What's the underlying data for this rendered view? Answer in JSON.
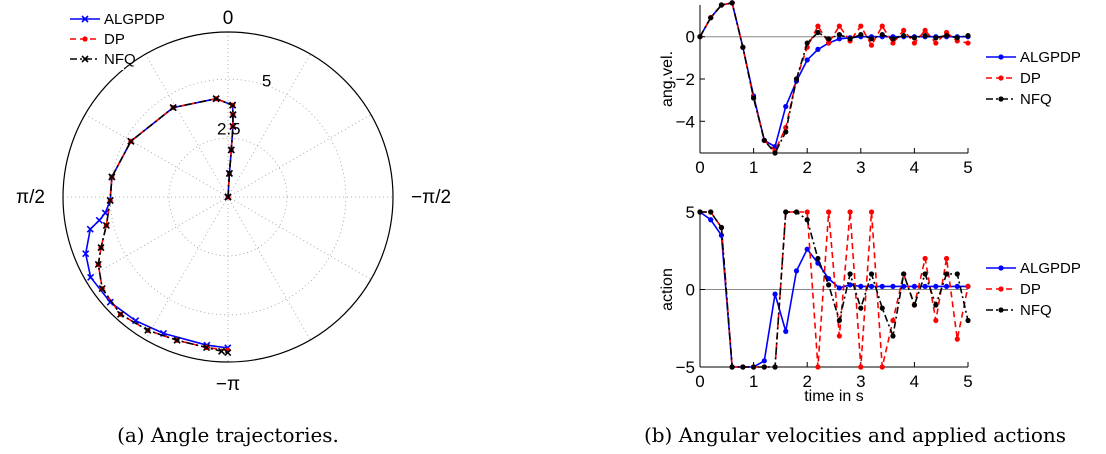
{
  "chart_data": [
    {
      "type": "polar-line",
      "caption": "(a) Angle trajectories.",
      "angle_labels": [
        "0",
        "π/2",
        "−π",
        "−π/2"
      ],
      "radial_ticks": [
        2.5,
        5
      ],
      "radial_tick_labels": [
        "2.5",
        "5"
      ],
      "rmax": 7,
      "series": [
        {
          "name": "ALGPDP",
          "color": "#0000ff",
          "dash": "solid",
          "marker": "x",
          "points": [
            [
              0.05,
              0
            ],
            [
              -0.06,
              1
            ],
            [
              -0.07,
              2
            ],
            [
              -0.07,
              3
            ],
            [
              -0.06,
              3.5
            ],
            [
              -0.05,
              3.9
            ],
            [
              0.12,
              4.2
            ],
            [
              0.55,
              4.45
            ],
            [
              1.05,
              4.75
            ],
            [
              1.4,
              5.0
            ],
            [
              1.6,
              5.0
            ],
            [
              1.7,
              5.25
            ],
            [
              1.75,
              5.55
            ],
            [
              1.8,
              6.0
            ],
            [
              1.95,
              6.5
            ],
            [
              2.1,
              6.75
            ],
            [
              2.3,
              6.7
            ],
            [
              2.5,
              6.55
            ],
            [
              2.7,
              6.4
            ],
            [
              3.0,
              6.35
            ],
            [
              3.14,
              6.4
            ]
          ]
        },
        {
          "name": "DP",
          "color": "#ff0000",
          "dash": "dashed",
          "marker": "dot",
          "points": [
            [
              0.05,
              0
            ],
            [
              -0.06,
              1
            ],
            [
              -0.07,
              2
            ],
            [
              -0.07,
              3
            ],
            [
              -0.06,
              3.5
            ],
            [
              -0.05,
              3.9
            ],
            [
              0.12,
              4.2
            ],
            [
              0.55,
              4.45
            ],
            [
              1.05,
              4.75
            ],
            [
              1.4,
              5.0
            ],
            [
              1.6,
              5.0
            ],
            [
              1.8,
              5.3
            ],
            [
              1.95,
              5.8
            ],
            [
              2.05,
              6.2
            ],
            [
              2.2,
              6.6
            ],
            [
              2.4,
              6.75
            ],
            [
              2.6,
              6.6
            ],
            [
              2.8,
              6.45
            ],
            [
              3.0,
              6.45
            ],
            [
              3.14,
              6.5
            ]
          ]
        },
        {
          "name": "NFQ",
          "color": "#000000",
          "dash": "dashdot",
          "marker": "x",
          "points": [
            [
              0.05,
              0
            ],
            [
              -0.06,
              1
            ],
            [
              -0.07,
              2
            ],
            [
              -0.07,
              3
            ],
            [
              -0.06,
              3.5
            ],
            [
              -0.05,
              3.9
            ],
            [
              0.12,
              4.2
            ],
            [
              0.55,
              4.45
            ],
            [
              1.05,
              4.75
            ],
            [
              1.4,
              5.0
            ],
            [
              1.6,
              5.0
            ],
            [
              1.8,
              5.3
            ],
            [
              1.95,
              5.8
            ],
            [
              2.05,
              6.2
            ],
            [
              2.2,
              6.6
            ],
            [
              2.4,
              6.75
            ],
            [
              2.6,
              6.6
            ],
            [
              2.8,
              6.45
            ],
            [
              3.0,
              6.45
            ],
            [
              3.1,
              6.55
            ],
            [
              3.14,
              6.6
            ]
          ]
        }
      ]
    },
    {
      "type": "line",
      "ylabel": "ang.vel.",
      "xlim": [
        0,
        5
      ],
      "ylim": [
        -5.5,
        1.5
      ],
      "xticks": [
        0,
        1,
        2,
        3,
        4,
        5
      ],
      "yticks": [
        0,
        -2,
        -4
      ],
      "ytick_labels": [
        "0",
        "−2",
        "−4"
      ],
      "series": [
        {
          "name": "ALGPDP",
          "color": "#0000ff",
          "dash": "solid",
          "marker": "dot",
          "x": [
            0,
            0.2,
            0.4,
            0.6,
            0.8,
            1.0,
            1.2,
            1.4,
            1.6,
            1.8,
            2.0,
            2.2,
            2.4,
            2.6,
            2.8,
            3.0,
            3.2,
            3.4,
            3.6,
            3.8,
            4.0,
            4.2,
            4.4,
            4.6,
            4.8,
            5.0
          ],
          "y": [
            0,
            0.9,
            1.5,
            1.6,
            -0.5,
            -2.8,
            -4.9,
            -5.2,
            -3.3,
            -2.1,
            -1.1,
            -0.6,
            -0.3,
            -0.1,
            -0.05,
            0,
            0,
            0,
            0,
            0,
            0,
            0,
            0,
            0,
            0,
            0
          ]
        },
        {
          "name": "DP",
          "color": "#ff0000",
          "dash": "dashed",
          "marker": "dot",
          "x": [
            0,
            0.2,
            0.4,
            0.6,
            0.8,
            1.0,
            1.2,
            1.4,
            1.6,
            1.8,
            2.0,
            2.2,
            2.4,
            2.6,
            2.8,
            3.0,
            3.2,
            3.4,
            3.6,
            3.8,
            4.0,
            4.2,
            4.4,
            4.6,
            4.8,
            5.0
          ],
          "y": [
            0,
            0.9,
            1.5,
            1.6,
            -0.5,
            -2.9,
            -4.9,
            -5.4,
            -4.3,
            -2.0,
            -0.5,
            0.5,
            -0.3,
            0.5,
            -0.2,
            0.5,
            -0.4,
            0.5,
            -0.3,
            0.3,
            -0.3,
            0.3,
            -0.3,
            0.2,
            -0.2,
            -0.3
          ]
        },
        {
          "name": "NFQ",
          "color": "#000000",
          "dash": "dashdot",
          "marker": "dot",
          "x": [
            0,
            0.2,
            0.4,
            0.6,
            0.8,
            1.0,
            1.2,
            1.4,
            1.6,
            1.8,
            2.0,
            2.2,
            2.4,
            2.6,
            2.8,
            3.0,
            3.2,
            3.4,
            3.6,
            3.8,
            4.0,
            4.2,
            4.4,
            4.6,
            4.8,
            5.0
          ],
          "y": [
            0,
            0.9,
            1.5,
            1.6,
            -0.5,
            -2.9,
            -4.9,
            -5.5,
            -4.5,
            -2.0,
            -0.3,
            0.2,
            -0.1,
            0.1,
            -0.1,
            0.1,
            -0.1,
            0.1,
            -0.1,
            0.05,
            -0.05,
            0.05,
            -0.05,
            0.05,
            -0.05,
            0.05
          ]
        }
      ]
    },
    {
      "type": "line",
      "ylabel": "action",
      "xlabel": "time in s",
      "xlim": [
        0,
        5
      ],
      "ylim": [
        -5,
        5
      ],
      "xticks": [
        0,
        1,
        2,
        3,
        4,
        5
      ],
      "yticks": [
        5,
        0,
        -5
      ],
      "ytick_labels": [
        "5",
        "0",
        "−5"
      ],
      "caption": "(b) Angular velocities and applied actions",
      "series": [
        {
          "name": "ALGPDP",
          "color": "#0000ff",
          "dash": "solid",
          "marker": "dot",
          "x": [
            0,
            0.2,
            0.4,
            0.6,
            0.8,
            1.0,
            1.2,
            1.4,
            1.6,
            1.8,
            2.0,
            2.2,
            2.4,
            2.6,
            2.8,
            3.0,
            3.2,
            3.4,
            3.6,
            3.8,
            4.0,
            4.2,
            4.4,
            4.6,
            4.8,
            5.0
          ],
          "y": [
            5,
            4.5,
            3.5,
            -5,
            -5,
            -5,
            -4.6,
            -0.3,
            -2.7,
            1.2,
            2.6,
            1.7,
            0.7,
            0.1,
            0.3,
            0.2,
            0.2,
            0.2,
            0.2,
            0.2,
            0.2,
            0.2,
            0.2,
            0.2,
            0.2,
            0.2
          ]
        },
        {
          "name": "DP",
          "color": "#ff0000",
          "dash": "dashed",
          "marker": "dot",
          "x": [
            0,
            0.2,
            0.4,
            0.6,
            0.8,
            1.0,
            1.2,
            1.4,
            1.6,
            1.8,
            2.0,
            2.2,
            2.4,
            2.6,
            2.8,
            3.0,
            3.2,
            3.4,
            3.6,
            3.8,
            4.0,
            4.2,
            4.4,
            4.6,
            4.8,
            5.0
          ],
          "y": [
            5,
            5,
            4,
            -5,
            -5,
            -5,
            -5,
            -5,
            5,
            5,
            5,
            -5,
            5,
            -3,
            5,
            -5,
            5,
            -5,
            -2,
            1,
            -1,
            2,
            -2,
            2,
            -3.2,
            0.2
          ]
        },
        {
          "name": "NFQ",
          "color": "#000000",
          "dash": "dashdot",
          "marker": "dot",
          "x": [
            0,
            0.2,
            0.4,
            0.6,
            0.8,
            1.0,
            1.2,
            1.4,
            1.6,
            1.8,
            2.0,
            2.2,
            2.4,
            2.6,
            2.8,
            3.0,
            3.2,
            3.4,
            3.6,
            3.8,
            4.0,
            4.2,
            4.4,
            4.6,
            4.8,
            5.0
          ],
          "y": [
            5,
            5,
            4,
            -5,
            -5,
            -5,
            -5,
            -5,
            5,
            5,
            4.5,
            2,
            0.3,
            -2,
            1,
            -1.2,
            1,
            -1.2,
            -3,
            1,
            -1,
            1,
            -1,
            1,
            1,
            -2
          ]
        }
      ]
    }
  ]
}
